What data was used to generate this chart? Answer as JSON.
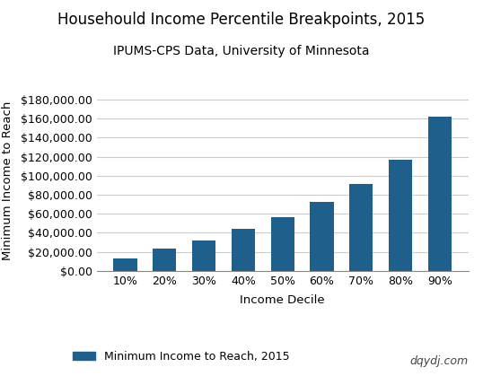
{
  "title": "Househould Income Percentile Breakpoints, 2015",
  "subtitle": "IPUMS-CPS Data, University of Minnesota",
  "xlabel": "Income Decile",
  "ylabel": "Minimum Income to Reach",
  "categories": [
    "10%",
    "20%",
    "30%",
    "40%",
    "50%",
    "60%",
    "70%",
    "80%",
    "90%"
  ],
  "values": [
    13000,
    23000,
    32000,
    44000,
    56000,
    72000,
    91000,
    117000,
    162000
  ],
  "bar_color": "#1F5F8B",
  "ylim": [
    0,
    190000
  ],
  "yticks": [
    0,
    20000,
    40000,
    60000,
    80000,
    100000,
    120000,
    140000,
    160000,
    180000
  ],
  "legend_label": "Minimum Income to Reach, 2015",
  "watermark": "dqydj.com",
  "background_color": "#ffffff",
  "grid_color": "#cccccc",
  "title_fontsize": 12,
  "subtitle_fontsize": 10,
  "label_fontsize": 9.5,
  "tick_fontsize": 9
}
